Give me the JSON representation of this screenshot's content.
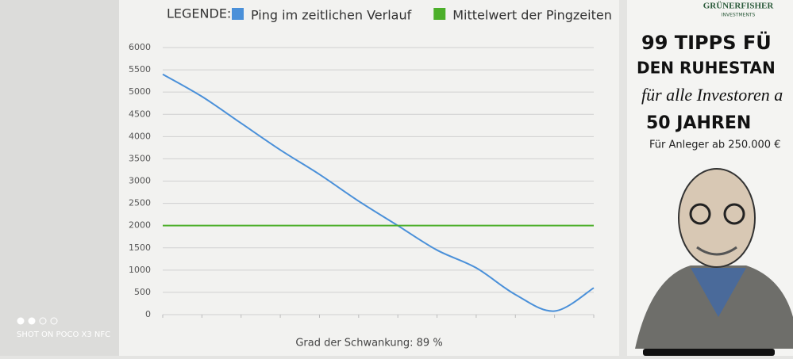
{
  "chart_data": {
    "type": "line",
    "legend_title": "LEGENDE:",
    "categories": [
      null,
      null,
      null,
      null,
      null,
      null,
      null,
      null,
      null,
      null,
      null,
      null
    ],
    "series": [
      {
        "name": "Ping im zeitlichen Verlauf",
        "color": "#4a90d9",
        "values": [
          5400,
          4900,
          4300,
          3700,
          3150,
          2550,
          2000,
          1450,
          1050,
          450,
          80,
          600
        ]
      },
      {
        "name": "Mittelwert der Pingzeiten",
        "color": "#4caf2a",
        "values": [
          2000,
          2000,
          2000,
          2000,
          2000,
          2000,
          2000,
          2000,
          2000,
          2000,
          2000,
          2000
        ]
      }
    ],
    "ylim": [
      0,
      6000
    ],
    "yticks": [
      0,
      500,
      1000,
      1500,
      2000,
      2500,
      3000,
      3500,
      4000,
      4500,
      5000,
      5500,
      6000
    ],
    "grid": true,
    "caption": "Grad der Schwankung: 89 %"
  },
  "ad": {
    "brand": "GRÜNERFISHER",
    "brand_sub": "INVESTMENTS",
    "line1": "99 TIPPS FÜ",
    "line2": "DEN RUHESTAN",
    "line3": "für alle Investoren a",
    "line4": "50 JAHREN",
    "line5": "Für Anleger ab 250.000 €"
  },
  "watermark": "SHOT ON POCO X3 NFC"
}
